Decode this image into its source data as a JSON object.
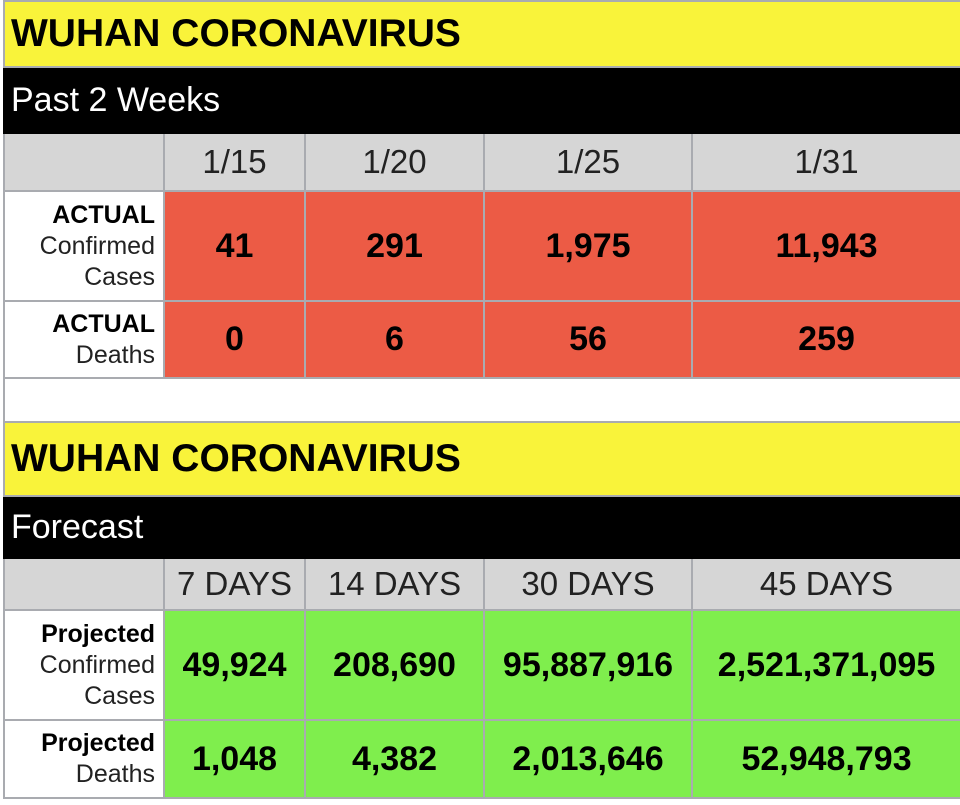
{
  "top": {
    "title": "WUHAN CORONAVIRUS",
    "subtitle": "Past 2 Weeks",
    "columns": [
      "1/15",
      "1/20",
      "1/25",
      "1/31"
    ],
    "rows": [
      {
        "label_bold": "ACTUAL",
        "label_lines": [
          "Confirmed",
          "Cases"
        ],
        "values": [
          "41",
          "291",
          "1,975",
          "11,943"
        ]
      },
      {
        "label_bold": "ACTUAL",
        "label_lines": [
          "Deaths"
        ],
        "values": [
          "0",
          "6",
          "56",
          "259"
        ]
      }
    ]
  },
  "bottom": {
    "title": "WUHAN CORONAVIRUS",
    "subtitle": "Forecast",
    "columns": [
      "7 DAYS",
      "14 DAYS",
      "30 DAYS",
      "45 DAYS"
    ],
    "rows": [
      {
        "label_bold": "Projected",
        "label_lines": [
          "Confirmed",
          "Cases"
        ],
        "values": [
          "49,924",
          "208,690",
          "95,887,916",
          "2,521,371,095"
        ]
      },
      {
        "label_bold": "Projected",
        "label_lines": [
          "Deaths"
        ],
        "values": [
          "1,048",
          "4,382",
          "2,013,646",
          "52,948,793"
        ]
      }
    ]
  },
  "colors": {
    "banner": "#f9f33a",
    "actual_cells": "#ec5b45",
    "projected_cells": "#7fee4d",
    "header_cells": "#d6d6d6"
  }
}
